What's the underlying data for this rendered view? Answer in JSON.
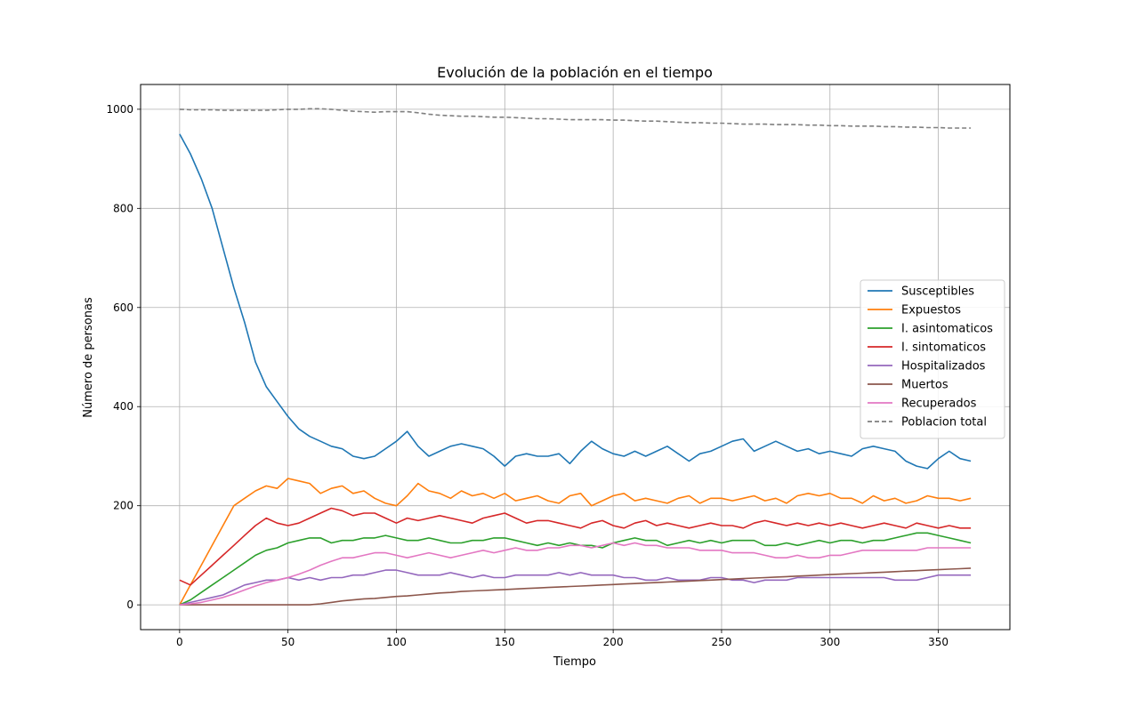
{
  "chart_data": {
    "type": "line",
    "title": "Evolución de la población en el tiempo",
    "xlabel": "Tiempo",
    "ylabel": "Número de personas",
    "xlim": [
      -18,
      383
    ],
    "ylim": [
      -50,
      1050
    ],
    "xticks": [
      0,
      50,
      100,
      150,
      200,
      250,
      300,
      350
    ],
    "yticks": [
      0,
      200,
      400,
      600,
      800,
      1000
    ],
    "grid": true,
    "legend_position": "center-right",
    "x": [
      0,
      5,
      10,
      15,
      20,
      25,
      30,
      35,
      40,
      45,
      50,
      55,
      60,
      65,
      70,
      75,
      80,
      85,
      90,
      95,
      100,
      105,
      110,
      115,
      120,
      125,
      130,
      135,
      140,
      145,
      150,
      155,
      160,
      165,
      170,
      175,
      180,
      185,
      190,
      195,
      200,
      205,
      210,
      215,
      220,
      225,
      230,
      235,
      240,
      245,
      250,
      255,
      260,
      265,
      270,
      275,
      280,
      285,
      290,
      295,
      300,
      305,
      310,
      315,
      320,
      325,
      330,
      335,
      340,
      345,
      350,
      355,
      360,
      365
    ],
    "series": [
      {
        "name": "Susceptibles",
        "color": "#1f77b4",
        "dash": false,
        "values": [
          950,
          910,
          860,
          800,
          720,
          640,
          570,
          490,
          440,
          410,
          380,
          355,
          340,
          330,
          320,
          315,
          300,
          295,
          300,
          315,
          330,
          350,
          320,
          300,
          310,
          320,
          325,
          320,
          315,
          300,
          280,
          300,
          305,
          300,
          300,
          305,
          285,
          310,
          330,
          315,
          305,
          300,
          310,
          300,
          310,
          320,
          305,
          290,
          305,
          310,
          320,
          330,
          335,
          310,
          320,
          330,
          320,
          310,
          315,
          305,
          310,
          305,
          300,
          315,
          320,
          315,
          310,
          290,
          280,
          275,
          295,
          310,
          295,
          290
        ]
      },
      {
        "name": "Expuestos",
        "color": "#ff7f0e",
        "dash": false,
        "values": [
          0,
          40,
          80,
          120,
          160,
          200,
          215,
          230,
          240,
          235,
          255,
          250,
          245,
          225,
          235,
          240,
          225,
          230,
          215,
          205,
          200,
          220,
          245,
          230,
          225,
          215,
          230,
          220,
          225,
          215,
          225,
          210,
          215,
          220,
          210,
          205,
          220,
          225,
          200,
          210,
          220,
          225,
          210,
          215,
          210,
          205,
          215,
          220,
          205,
          215,
          215,
          210,
          215,
          220,
          210,
          215,
          205,
          220,
          225,
          220,
          225,
          215,
          215,
          205,
          220,
          210,
          215,
          205,
          210,
          220,
          215,
          215,
          210,
          215
        ]
      },
      {
        "name": "I. asintomaticos",
        "color": "#2ca02c",
        "dash": false,
        "values": [
          0,
          10,
          25,
          40,
          55,
          70,
          85,
          100,
          110,
          115,
          125,
          130,
          135,
          135,
          125,
          130,
          130,
          135,
          135,
          140,
          135,
          130,
          130,
          135,
          130,
          125,
          125,
          130,
          130,
          135,
          135,
          130,
          125,
          120,
          125,
          120,
          125,
          120,
          120,
          115,
          125,
          130,
          135,
          130,
          130,
          120,
          125,
          130,
          125,
          130,
          125,
          130,
          130,
          130,
          120,
          120,
          125,
          120,
          125,
          130,
          125,
          130,
          130,
          125,
          130,
          130,
          135,
          140,
          145,
          145,
          140,
          135,
          130,
          125
        ]
      },
      {
        "name": "I. sintomaticos",
        "color": "#d62728",
        "dash": false,
        "values": [
          50,
          40,
          60,
          80,
          100,
          120,
          140,
          160,
          175,
          165,
          160,
          165,
          175,
          185,
          195,
          190,
          180,
          185,
          185,
          175,
          165,
          175,
          170,
          175,
          180,
          175,
          170,
          165,
          175,
          180,
          185,
          175,
          165,
          170,
          170,
          165,
          160,
          155,
          165,
          170,
          160,
          155,
          165,
          170,
          160,
          165,
          160,
          155,
          160,
          165,
          160,
          160,
          155,
          165,
          170,
          165,
          160,
          165,
          160,
          165,
          160,
          165,
          160,
          155,
          160,
          165,
          160,
          155,
          165,
          160,
          155,
          160,
          155,
          155
        ]
      },
      {
        "name": "Hospitalizados",
        "color": "#9467bd",
        "dash": false,
        "values": [
          0,
          5,
          10,
          15,
          20,
          30,
          40,
          45,
          50,
          50,
          55,
          50,
          55,
          50,
          55,
          55,
          60,
          60,
          65,
          70,
          70,
          65,
          60,
          60,
          60,
          65,
          60,
          55,
          60,
          55,
          55,
          60,
          60,
          60,
          60,
          65,
          60,
          65,
          60,
          60,
          60,
          55,
          55,
          50,
          50,
          55,
          50,
          50,
          50,
          55,
          55,
          50,
          50,
          45,
          50,
          50,
          50,
          55,
          55,
          55,
          55,
          55,
          55,
          55,
          55,
          55,
          50,
          50,
          50,
          55,
          60,
          60,
          60,
          60
        ]
      },
      {
        "name": "Muertos",
        "color": "#8c564b",
        "dash": false,
        "values": [
          0,
          0,
          0,
          0,
          0,
          0,
          0,
          0,
          0,
          0,
          0,
          0,
          0,
          2,
          5,
          8,
          10,
          12,
          13,
          15,
          17,
          18,
          20,
          22,
          24,
          25,
          27,
          28,
          29,
          30,
          31,
          32,
          33,
          34,
          35,
          36,
          37,
          38,
          39,
          40,
          41,
          42,
          43,
          44,
          45,
          46,
          47,
          48,
          49,
          50,
          51,
          52,
          53,
          54,
          55,
          56,
          57,
          58,
          59,
          60,
          61,
          62,
          63,
          64,
          65,
          66,
          67,
          68,
          69,
          70,
          71,
          72,
          73,
          74
        ]
      },
      {
        "name": "Recuperados",
        "color": "#e377c2",
        "dash": false,
        "values": [
          0,
          2,
          5,
          10,
          15,
          22,
          30,
          38,
          45,
          50,
          55,
          62,
          70,
          80,
          88,
          95,
          95,
          100,
          105,
          105,
          100,
          95,
          100,
          105,
          100,
          95,
          100,
          105,
          110,
          105,
          110,
          115,
          110,
          110,
          115,
          115,
          120,
          120,
          115,
          120,
          125,
          120,
          125,
          120,
          120,
          115,
          115,
          115,
          110,
          110,
          110,
          105,
          105,
          105,
          100,
          95,
          95,
          100,
          95,
          95,
          100,
          100,
          105,
          110,
          110,
          110,
          110,
          110,
          110,
          115,
          115,
          115,
          115,
          115
        ]
      },
      {
        "name": "Poblacion total",
        "color": "#7f7f7f",
        "dash": true,
        "values": [
          1000,
          999,
          999,
          999,
          998,
          998,
          998,
          998,
          998,
          999,
          1000,
          1000,
          1001,
          1001,
          1000,
          998,
          996,
          995,
          994,
          995,
          995,
          995,
          993,
          990,
          988,
          987,
          986,
          986,
          985,
          984,
          984,
          983,
          982,
          981,
          981,
          980,
          979,
          979,
          979,
          979,
          978,
          978,
          977,
          976,
          976,
          975,
          974,
          973,
          973,
          972,
          972,
          971,
          970,
          970,
          970,
          969,
          969,
          969,
          968,
          968,
          967,
          967,
          966,
          966,
          966,
          965,
          965,
          964,
          964,
          963,
          963,
          962,
          962,
          962
        ]
      }
    ]
  }
}
